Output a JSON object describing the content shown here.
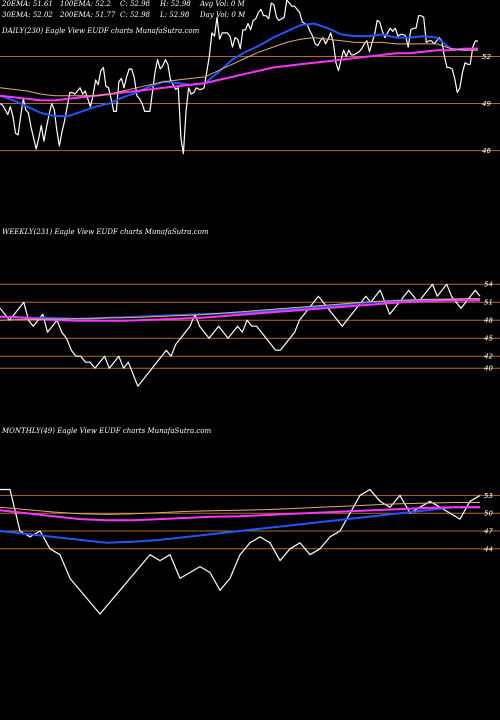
{
  "header": {
    "ema20": "20EMA: 51.61",
    "ema100": "100EMA: 52.2",
    "close1": "C: 52.98",
    "high": "H: 52.98",
    "avgvol": "Avg Vol: 0  M",
    "ema30": "30EMA: 52.02",
    "ema200": "200EMA: 51.77",
    "close2": "C: 52.98",
    "low": "L: 52.98",
    "dayvol": "Day Vol: 0  M"
  },
  "panels": [
    {
      "label": "DAILY(230) Eagle   View  EUDF charts MunafaSutra.com"
    },
    {
      "label": "WEEKLY(231) Eagle   View  EUDF charts MunafaSutra.com"
    },
    {
      "label": "MONTHLY(49) Eagle   View  EUDF charts MunafaSutra.com"
    }
  ],
  "colors": {
    "background": "#000000",
    "price": "#ffffff",
    "ema_blue": "#2255ff",
    "ema_magenta": "#ff33ff",
    "ema_tan": "#d8b070",
    "level_lines": "#b06a2a"
  },
  "chart_data": [
    {
      "type": "line",
      "title": "DAILY(230) Eagle   View  EUDF charts MunafaSutra.com",
      "yticks": [
        46,
        49,
        52
      ],
      "ylim": [
        45.4,
        55.6
      ],
      "levels": [
        46,
        49,
        52
      ],
      "series": [
        {
          "role": "price",
          "values": [
            49.0,
            48.9,
            48.6,
            48.3,
            48.8,
            48.2,
            47.1,
            47.0,
            48.2,
            49.3,
            48.6,
            48.4,
            47.5,
            46.8,
            46.1,
            46.8,
            47.6,
            46.6,
            47.5,
            48.3,
            49.0,
            48.6,
            47.3,
            46.3,
            47.2,
            47.9,
            48.8,
            49.7,
            49.7,
            49.6,
            49.8,
            50.0,
            49.6,
            49.8,
            49.3,
            48.8,
            49.5,
            50.5,
            50.2,
            51.1,
            51.3,
            50.1,
            50.0,
            49.3,
            48.5,
            48.5,
            50.4,
            50.6,
            50.0,
            50.7,
            51.2,
            51.2,
            50.6,
            49.5,
            49.3,
            49.0,
            48.5,
            48.5,
            48.5,
            49.7,
            51.0,
            51.8,
            51.2,
            51.4,
            51.8,
            51.5,
            50.5,
            50.2,
            49.9,
            50.0,
            46.8,
            45.8,
            48.5,
            50.0,
            49.6,
            49.7,
            50.0,
            49.9,
            49.9,
            50.0,
            51.0,
            52.0,
            53.5,
            53.3,
            54.5,
            53.1,
            53.5,
            53.5,
            53.5,
            53.3,
            52.6,
            53.2,
            53.1,
            52.5,
            53.7,
            53.7,
            54.1,
            53.7,
            54.3,
            54.4,
            54.8,
            55.0,
            54.6,
            54.6,
            54.4,
            55.4,
            55.3,
            54.5,
            54.3,
            54.4,
            54.5,
            55.6,
            55.4,
            55.2,
            55.2,
            55.0,
            54.8,
            54.2,
            54.1,
            54.0,
            53.6,
            53.3,
            52.8,
            52.7,
            53.0,
            53.2,
            52.8,
            53.1,
            53.5,
            52.9,
            51.6,
            51.1,
            51.8,
            52.4,
            52.0,
            52.4,
            52.1,
            52.1,
            52.2,
            52.3,
            52.5,
            52.8,
            53.0,
            52.3,
            52.9,
            53.4,
            54.3,
            54.2,
            53.6,
            53.2,
            53.5,
            53.8,
            53.6,
            53.8,
            53.3,
            53.4,
            53.4,
            53.3,
            52.6,
            53.7,
            53.8,
            53.8,
            54.6,
            54.6,
            54.5,
            52.9,
            53.0,
            53.0,
            52.8,
            53.0,
            53.2,
            53.0,
            52.0,
            51.3,
            51.3,
            51.2,
            50.6,
            49.7,
            50.0,
            51.0,
            51.6,
            51.5,
            51.5,
            52.6,
            53.0,
            52.98
          ]
        },
        {
          "role": "ema",
          "color": "blue",
          "values": [
            49.5,
            49.2,
            48.8,
            48.4,
            48.2,
            48.2,
            48.5,
            48.8,
            49.0,
            49.4,
            49.7,
            50.1,
            50.4,
            50.3,
            50.2,
            50.3,
            51.0,
            51.8,
            52.3,
            52.7,
            53.2,
            53.6,
            54.0,
            54.1,
            53.8,
            53.4,
            53.3,
            53.3,
            53.4,
            53.2,
            53.2,
            53.3,
            53.2,
            52.5,
            52.4,
            52.5
          ]
        },
        {
          "role": "ema",
          "color": "magenta",
          "values": [
            49.5,
            49.4,
            49.3,
            49.2,
            49.2,
            49.3,
            49.4,
            49.5,
            49.6,
            49.7,
            49.8,
            49.9,
            50.0,
            50.1,
            50.2,
            50.3,
            50.5,
            50.7,
            50.9,
            51.1,
            51.3,
            51.4,
            51.5,
            51.6,
            51.7,
            51.8,
            51.9,
            52.0,
            52.1,
            52.2,
            52.2,
            52.3,
            52.4,
            52.4,
            52.5,
            52.5
          ]
        },
        {
          "role": "ema",
          "color": "tan",
          "values": [
            50.0,
            49.9,
            49.8,
            49.6,
            49.5,
            49.5,
            49.5,
            49.5,
            49.6,
            49.8,
            50.0,
            50.2,
            50.4,
            50.5,
            50.6,
            50.7,
            51.1,
            51.5,
            51.9,
            52.3,
            52.6,
            52.9,
            53.1,
            53.2,
            53.1,
            53.0,
            52.9,
            52.9,
            52.9,
            52.8,
            52.8,
            52.8,
            52.8,
            52.5,
            52.4,
            52.4
          ]
        }
      ]
    },
    {
      "type": "line",
      "title": "WEEKLY(231) Eagle   View  EUDF charts MunafaSutra.com",
      "yticks": [
        40,
        42,
        45,
        48,
        51,
        54
      ],
      "ylim": [
        34.7,
        54.7
      ],
      "levels": [
        40,
        42,
        45,
        48,
        51,
        54
      ],
      "series": [
        {
          "role": "price",
          "values": [
            50,
            49,
            48,
            49,
            50,
            51,
            48,
            47,
            48,
            49,
            46,
            47,
            48,
            46,
            45,
            43,
            42,
            42,
            41,
            41,
            40,
            41,
            42,
            40,
            41,
            42,
            40,
            41,
            39,
            37,
            38,
            39,
            40,
            41,
            42,
            43,
            42,
            44,
            45,
            46,
            47,
            49,
            47,
            46,
            45,
            46,
            47,
            46,
            45,
            46,
            47,
            46,
            48,
            47,
            47,
            46,
            45,
            44,
            43,
            43,
            44,
            45,
            46,
            48,
            49,
            50,
            51,
            52,
            51,
            50,
            49,
            48,
            47,
            48,
            49,
            50,
            51,
            52,
            51,
            52,
            53,
            51,
            49,
            50,
            51,
            52,
            53,
            52,
            51,
            52,
            53,
            54,
            52,
            53,
            54,
            52,
            51,
            50,
            51,
            52,
            53,
            52
          ]
        },
        {
          "role": "ema",
          "color": "blue",
          "values": [
            48.5,
            48.5,
            48.4,
            48.4,
            48.3,
            48.2,
            48.3,
            48.4,
            48.5,
            48.6,
            48.7,
            48.8,
            48.9,
            49.0,
            49.1,
            49.2,
            49.3,
            49.5,
            49.7,
            49.9,
            50.1,
            50.3,
            50.5,
            50.8,
            51.0,
            51.2,
            51.3,
            51.4,
            51.4,
            51.5,
            51.5,
            51.5
          ]
        },
        {
          "role": "ema",
          "color": "magenta",
          "values": [
            48.6,
            48.5,
            48.3,
            48.1,
            48.0,
            47.9,
            47.9,
            47.9,
            47.9,
            48.0,
            48.1,
            48.2,
            48.3,
            48.4,
            48.6,
            48.8,
            49.0,
            49.2,
            49.4,
            49.6,
            49.8,
            50.0,
            50.2,
            50.4,
            50.6,
            50.8,
            51.0,
            51.1,
            51.2,
            51.3,
            51.3,
            51.3
          ]
        },
        {
          "role": "ema",
          "color": "tan",
          "values": [
            48.0,
            48.1,
            48.1,
            48.2,
            48.2,
            48.3,
            48.3,
            48.4,
            48.4,
            48.5,
            48.6,
            48.7,
            48.8,
            48.9,
            49.1,
            49.3,
            49.5,
            49.7,
            49.9,
            50.1,
            50.3,
            50.5,
            50.7,
            50.9,
            51.1,
            51.2,
            51.3,
            51.4,
            51.5,
            51.5,
            51.6,
            51.6
          ]
        }
      ]
    },
    {
      "type": "line",
      "title": "MONTHLY(49) Eagle   View  EUDF charts MunafaSutra.com",
      "yticks": [
        44,
        47,
        50,
        53
      ],
      "ylim": [
        30.3,
        55.6
      ],
      "levels": [
        44,
        47,
        50,
        53
      ],
      "series": [
        {
          "role": "price",
          "values": [
            54,
            54,
            47,
            46,
            47,
            44,
            43,
            39,
            37,
            35,
            33,
            35,
            37,
            39,
            41,
            43,
            42,
            43,
            39,
            40,
            41,
            40,
            37,
            39,
            43,
            45,
            46,
            45,
            42,
            44,
            45,
            43,
            44,
            46,
            47,
            50,
            53,
            54,
            52,
            51,
            53,
            50,
            51,
            52,
            51,
            50,
            49,
            52,
            52.98
          ]
        },
        {
          "role": "ema",
          "color": "blue",
          "values": [
            47,
            46.5,
            46,
            45.5,
            45,
            45.2,
            45.5,
            46,
            46.5,
            47,
            47.5,
            48,
            48.5,
            49,
            49.5,
            50,
            50.5,
            51,
            51
          ]
        },
        {
          "role": "ema",
          "color": "magenta",
          "values": [
            50.5,
            50,
            49.5,
            49,
            48.8,
            48.8,
            49,
            49.2,
            49.4,
            49.5,
            49.7,
            49.9,
            50.1,
            50.3,
            50.5,
            50.7,
            50.9,
            51,
            51
          ]
        },
        {
          "role": "ema",
          "color": "tan",
          "values": [
            51,
            50.6,
            50.2,
            49.9,
            49.8,
            49.9,
            50.1,
            50.3,
            50.4,
            50.5,
            50.6,
            50.8,
            51,
            51.2,
            51.4,
            51.6,
            51.7,
            51.8,
            51.8
          ]
        }
      ]
    }
  ]
}
